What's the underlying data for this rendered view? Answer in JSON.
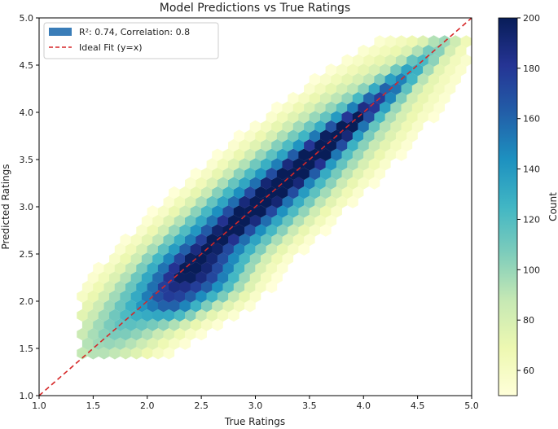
{
  "chart_data": {
    "type": "hexbin",
    "title": "Model Predictions vs True Ratings",
    "xlabel": "True Ratings",
    "ylabel": "Predicted Ratings",
    "xlim": [
      1.0,
      5.0
    ],
    "ylim": [
      1.0,
      5.0
    ],
    "xticks": [
      "1.0",
      "1.5",
      "2.0",
      "2.5",
      "3.0",
      "3.5",
      "4.0",
      "4.5",
      "5.0"
    ],
    "yticks": [
      "1.0",
      "1.5",
      "2.0",
      "2.5",
      "3.0",
      "3.5",
      "4.0",
      "4.5",
      "5.0"
    ],
    "legend": {
      "placement": "top-left",
      "entries": [
        {
          "label": "R²: 0.74, Correlation: 0.8",
          "kind": "patch",
          "color": "#3a7db8"
        },
        {
          "label": "Ideal Fit (y=x)",
          "kind": "dashed-line",
          "color": "#d62728"
        }
      ]
    },
    "ideal_line": {
      "from": [
        1.0,
        1.0
      ],
      "to": [
        5.0,
        5.0
      ],
      "color": "#d62728"
    },
    "colorbar": {
      "label": "Count",
      "range": [
        50,
        200
      ],
      "ticks": [
        "60",
        "80",
        "100",
        "120",
        "140",
        "160",
        "180",
        "200"
      ],
      "colormap": "YlGnBu"
    },
    "grid": false
  }
}
